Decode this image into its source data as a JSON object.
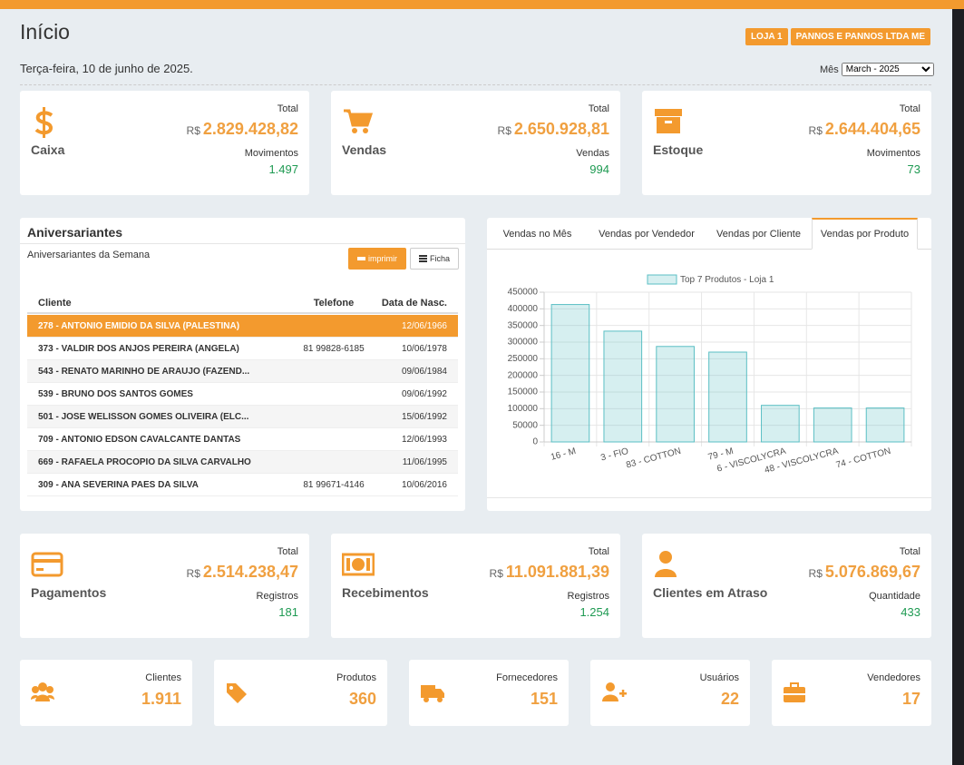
{
  "header": {
    "title": "Início",
    "badges": [
      "LOJA 1",
      "PANNOS E PANNOS LTDA ME"
    ],
    "date": "Terça-feira, 10 de junho de 2025.",
    "month_label": "Mês",
    "month_value": "March - 2025"
  },
  "summary_cards": [
    {
      "label": "Caixa",
      "total_label": "Total",
      "currency": "R$",
      "total": "2.829.428,82",
      "sub_label": "Movimentos",
      "sub_value": "1.497"
    },
    {
      "label": "Vendas",
      "total_label": "Total",
      "currency": "R$",
      "total": "2.650.928,81",
      "sub_label": "Vendas",
      "sub_value": "994"
    },
    {
      "label": "Estoque",
      "total_label": "Total",
      "currency": "R$",
      "total": "2.644.404,65",
      "sub_label": "Movimentos",
      "sub_value": "73"
    }
  ],
  "birthdays": {
    "title": "Aniversariantes",
    "subtitle": "Aniversariantes da Semana",
    "print_button": "imprimir",
    "ficha_button": "Ficha",
    "columns": [
      "Cliente",
      "Telefone",
      "Data de Nasc."
    ],
    "highlighted_row": 0,
    "rows": [
      [
        "278 - ANTONIO EMIDIO DA SILVA (PALESTINA)",
        null,
        "12/06/1966"
      ],
      [
        "373 - VALDIR DOS ANJOS PEREIRA (ANGELA)",
        "81 99828-6185",
        "10/06/1978"
      ],
      [
        "543 - RENATO MARINHO DE ARAUJO (FAZEND...",
        null,
        "09/06/1984"
      ],
      [
        "539 - BRUNO DOS SANTOS GOMES",
        null,
        "09/06/1992"
      ],
      [
        "501 - JOSE WELISSON GOMES OLIVEIRA (ELC...",
        null,
        "15/06/1992"
      ],
      [
        "709 - ANTONIO EDSON CAVALCANTE DANTAS",
        null,
        "12/06/1993"
      ],
      [
        "669 - RAFAELA PROCOPIO DA SILVA CARVALHO",
        null,
        "11/06/1995"
      ],
      [
        "309 - ANA SEVERINA PAES DA SILVA",
        "81 99671-4146",
        "10/06/2016"
      ]
    ]
  },
  "tabs": [
    "Vendas no Mês",
    "Vendas por Vendedor",
    "Vendas por Cliente",
    "Vendas por Produto"
  ],
  "active_tab": 3,
  "chart_data": {
    "type": "bar",
    "categories": [
      "16 - M",
      "3 - FIO",
      "83 - COTTON",
      "79 - M",
      "6 - VISCOLYCRA",
      "48 - VISCOLYCRA",
      "74 - COTTON"
    ],
    "series": [
      {
        "name": "Top 7 Produtos - Loja 1",
        "color": "#5bbfc4",
        "values": [
          413000,
          333000,
          287000,
          270000,
          110000,
          102000,
          102000
        ]
      }
    ],
    "ylim": [
      0,
      450000
    ],
    "yticks": [
      0,
      50000,
      100000,
      150000,
      200000,
      250000,
      300000,
      350000,
      400000,
      450000
    ],
    "grid": true
  },
  "finance_cards": [
    {
      "label": "Pagamentos",
      "total_label": "Total",
      "currency": "R$",
      "total": "2.514.238,47",
      "sub_label": "Registros",
      "sub_value": "181"
    },
    {
      "label": "Recebimentos",
      "total_label": "Total",
      "currency": "R$",
      "total": "11.091.881,39",
      "sub_label": "Registros",
      "sub_value": "1.254"
    },
    {
      "label": "Clientes em Atraso",
      "total_label": "Total",
      "currency": "R$",
      "total": "5.076.869,67",
      "sub_label": "Quantidade",
      "sub_value": "433"
    }
  ],
  "count_cards": [
    {
      "label": "Clientes",
      "value": "1.911"
    },
    {
      "label": "Produtos",
      "value": "360"
    },
    {
      "label": "Fornecedores",
      "value": "151"
    },
    {
      "label": "Usuários",
      "value": "22"
    },
    {
      "label": "Vendedores",
      "value": "17"
    }
  ]
}
